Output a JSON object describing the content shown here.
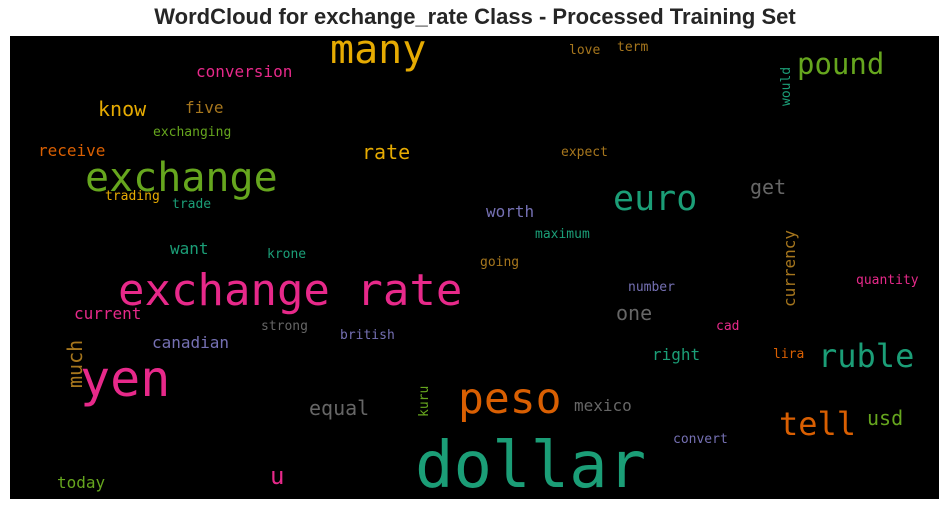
{
  "title": "WordCloud for exchange_rate Class - Processed Training Set",
  "colors": {
    "pink": "#e7298a",
    "green": "#1b9e77",
    "orange": "#d95f02",
    "gold": "#e6ab02",
    "purple": "#7570b3",
    "lime": "#66a61e",
    "brown": "#a6761d",
    "gray": "#666666"
  },
  "words": [
    {
      "text": "dollar",
      "color": "#1b9e77"
    },
    {
      "text": "exchange rate",
      "color": "#e7298a"
    },
    {
      "text": "yen",
      "color": "#e7298a"
    },
    {
      "text": "exchange",
      "color": "#66a61e"
    },
    {
      "text": "many",
      "color": "#e6ab02"
    },
    {
      "text": "peso",
      "color": "#d95f02"
    },
    {
      "text": "euro",
      "color": "#1b9e77"
    },
    {
      "text": "ruble",
      "color": "#1b9e77"
    },
    {
      "text": "pound",
      "color": "#66a61e"
    },
    {
      "text": "tell",
      "color": "#d95f02"
    },
    {
      "text": "conversion",
      "color": "#e7298a"
    },
    {
      "text": "know",
      "color": "#e6ab02"
    },
    {
      "text": "five",
      "color": "#a6761d"
    },
    {
      "text": "exchanging",
      "color": "#66a61e"
    },
    {
      "text": "receive",
      "color": "#d95f02"
    },
    {
      "text": "rate",
      "color": "#e6ab02"
    },
    {
      "text": "trading",
      "color": "#e6ab02"
    },
    {
      "text": "trade",
      "color": "#1b9e77"
    },
    {
      "text": "love",
      "color": "#a6761d"
    },
    {
      "text": "term",
      "color": "#a6761d"
    },
    {
      "text": "would",
      "color": "#1b9e77"
    },
    {
      "text": "expect",
      "color": "#a6761d"
    },
    {
      "text": "get",
      "color": "#666666"
    },
    {
      "text": "worth",
      "color": "#7570b3"
    },
    {
      "text": "want",
      "color": "#1b9e77"
    },
    {
      "text": "krone",
      "color": "#1b9e77"
    },
    {
      "text": "maximum",
      "color": "#1b9e77"
    },
    {
      "text": "going",
      "color": "#a6761d"
    },
    {
      "text": "currency",
      "color": "#a6761d"
    },
    {
      "text": "quantity",
      "color": "#e7298a"
    },
    {
      "text": "number",
      "color": "#7570b3"
    },
    {
      "text": "one",
      "color": "#666666"
    },
    {
      "text": "current",
      "color": "#e7298a"
    },
    {
      "text": "strong",
      "color": "#666666"
    },
    {
      "text": "british",
      "color": "#7570b3"
    },
    {
      "text": "canadian",
      "color": "#7570b3"
    },
    {
      "text": "cad",
      "color": "#e7298a"
    },
    {
      "text": "much",
      "color": "#a6761d"
    },
    {
      "text": "right",
      "color": "#1b9e77"
    },
    {
      "text": "lira",
      "color": "#d95f02"
    },
    {
      "text": "equal",
      "color": "#666666"
    },
    {
      "text": "kuru",
      "color": "#66a61e"
    },
    {
      "text": "mexico",
      "color": "#666666"
    },
    {
      "text": "usd",
      "color": "#66a61e"
    },
    {
      "text": "convert",
      "color": "#7570b3"
    },
    {
      "text": "today",
      "color": "#66a61e"
    },
    {
      "text": "u",
      "color": "#e7298a"
    }
  ]
}
